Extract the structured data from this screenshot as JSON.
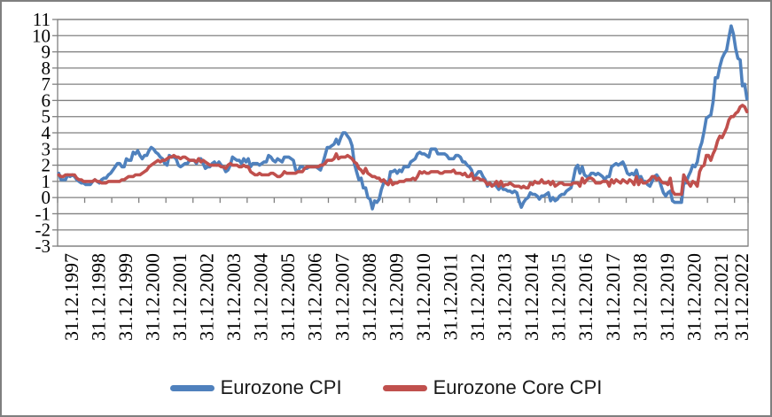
{
  "chart_data": {
    "type": "line",
    "title": "",
    "grid": "horizontal",
    "legend_position": "bottom",
    "ylim": [
      -3,
      11
    ],
    "y_tick_step": 1,
    "y_tick_labels": [
      "11",
      "10",
      "9",
      "8",
      "7",
      "6",
      "5",
      "4",
      "3",
      "2",
      "1",
      "0",
      "-1",
      "-2",
      "-3"
    ],
    "x_tick_labels": [
      "31.12.1997",
      "31.12.1998",
      "31.12.1999",
      "31.12.2000",
      "31.12.2001",
      "31.12.2002",
      "31.12.2003",
      "31.12.2004",
      "31.12.2005",
      "31.12.2006",
      "31.12.2007",
      "31.12.2008",
      "31.12.2009",
      "31.12.2010",
      "31.12.2011",
      "31.12.2012",
      "31.12.2013",
      "31.12.2014",
      "31.12.2015",
      "31.12.2016",
      "31.12.2017",
      "31.12.2018",
      "31.12.2019",
      "31.12.2020",
      "31.12.2021",
      "31.12.2022"
    ],
    "x_label_interval_months": 12,
    "frequency": "monthly",
    "x_start": "1997-12",
    "x_end": "2023-05",
    "series": [
      {
        "name": "Eurozone CPI",
        "color": "#4F81BD",
        "values": [
          1.5,
          1.1,
          1.1,
          1.1,
          1.4,
          1.3,
          1.4,
          1.3,
          1.1,
          1.0,
          0.9,
          0.9,
          0.8,
          0.8,
          0.8,
          1.0,
          1.1,
          1.0,
          0.9,
          1.1,
          1.2,
          1.2,
          1.4,
          1.5,
          1.7,
          1.9,
          2.1,
          2.1,
          1.9,
          1.9,
          2.4,
          2.3,
          2.3,
          2.8,
          2.7,
          2.9,
          2.6,
          2.4,
          2.6,
          2.6,
          2.9,
          3.1,
          3.0,
          2.8,
          2.7,
          2.5,
          2.4,
          2.1,
          2.0,
          2.6,
          2.5,
          2.5,
          2.4,
          2.0,
          1.9,
          2.0,
          2.1,
          2.1,
          2.3,
          2.3,
          2.3,
          2.1,
          2.4,
          2.4,
          2.1,
          1.8,
          1.9,
          1.9,
          2.1,
          2.2,
          2.0,
          2.2,
          2.0,
          1.9,
          1.6,
          1.7,
          2.0,
          2.5,
          2.4,
          2.3,
          2.3,
          2.1,
          2.4,
          2.2,
          2.4,
          1.9,
          2.1,
          2.1,
          2.1,
          2.0,
          2.1,
          2.2,
          2.2,
          2.6,
          2.5,
          2.3,
          2.2,
          2.4,
          2.3,
          2.2,
          2.5,
          2.5,
          2.5,
          2.4,
          2.3,
          1.7,
          1.6,
          1.9,
          1.9,
          1.8,
          1.8,
          1.9,
          1.9,
          1.9,
          1.9,
          1.8,
          1.7,
          2.1,
          2.6,
          3.1,
          3.1,
          3.2,
          3.3,
          3.6,
          3.3,
          3.7,
          4.0,
          4.0,
          3.8,
          3.6,
          3.2,
          2.1,
          1.6,
          1.1,
          1.2,
          0.6,
          0.6,
          0.0,
          -0.1,
          -0.7,
          -0.2,
          -0.3,
          -0.1,
          0.5,
          0.9,
          1.0,
          0.8,
          1.6,
          1.6,
          1.7,
          1.5,
          1.7,
          1.6,
          1.9,
          1.9,
          1.9,
          2.2,
          2.3,
          2.4,
          2.7,
          2.8,
          2.7,
          2.7,
          2.6,
          2.5,
          3.0,
          3.0,
          3.0,
          2.7,
          2.7,
          2.7,
          2.7,
          2.6,
          2.4,
          2.4,
          2.4,
          2.6,
          2.6,
          2.5,
          2.2,
          2.2,
          2.0,
          1.9,
          1.7,
          1.2,
          1.4,
          1.6,
          1.6,
          1.3,
          1.1,
          0.7,
          0.9,
          0.8,
          0.8,
          0.7,
          0.5,
          0.7,
          0.5,
          0.5,
          0.4,
          0.4,
          0.3,
          0.4,
          0.3,
          -0.2,
          -0.6,
          -0.3,
          -0.1,
          0.0,
          0.3,
          0.2,
          0.2,
          0.1,
          -0.1,
          0.1,
          0.1,
          0.2,
          0.3,
          -0.2,
          0.0,
          -0.2,
          -0.1,
          0.1,
          0.2,
          0.2,
          0.4,
          0.5,
          0.6,
          1.1,
          1.8,
          2.0,
          1.5,
          1.9,
          1.4,
          1.3,
          1.3,
          1.5,
          1.5,
          1.4,
          1.5,
          1.4,
          1.3,
          1.1,
          1.3,
          1.3,
          1.9,
          2.0,
          2.1,
          2.0,
          2.1,
          2.2,
          1.9,
          1.5,
          1.4,
          1.5,
          1.4,
          1.7,
          1.2,
          1.3,
          1.0,
          1.0,
          0.8,
          0.7,
          1.0,
          1.3,
          1.4,
          1.2,
          0.7,
          0.3,
          0.1,
          0.3,
          0.4,
          -0.2,
          -0.3,
          -0.3,
          -0.3,
          -0.3,
          0.9,
          0.9,
          1.3,
          1.6,
          2.0,
          1.9,
          2.2,
          3.0,
          3.4,
          4.1,
          4.9,
          5.0,
          5.1,
          5.9,
          7.4,
          7.4,
          8.1,
          8.6,
          8.9,
          9.1,
          9.9,
          10.6,
          10.1,
          9.2,
          8.6,
          8.5,
          6.9,
          7.0,
          6.1
        ]
      },
      {
        "name": "Eurozone Core CPI",
        "color": "#C0504D",
        "values": [
          1.4,
          1.3,
          1.3,
          1.4,
          1.4,
          1.4,
          1.4,
          1.4,
          1.2,
          1.1,
          1.1,
          1.0,
          1.0,
          1.0,
          1.0,
          1.0,
          1.1,
          1.0,
          1.0,
          0.9,
          0.9,
          0.9,
          1.0,
          1.0,
          1.0,
          1.0,
          1.0,
          1.0,
          1.1,
          1.1,
          1.2,
          1.3,
          1.3,
          1.3,
          1.4,
          1.4,
          1.4,
          1.5,
          1.6,
          1.7,
          1.9,
          2.0,
          2.1,
          2.2,
          2.3,
          2.2,
          2.3,
          2.3,
          2.4,
          2.5,
          2.5,
          2.6,
          2.5,
          2.5,
          2.4,
          2.5,
          2.5,
          2.4,
          2.3,
          2.3,
          2.3,
          2.2,
          2.4,
          2.2,
          2.3,
          2.2,
          2.1,
          2.0,
          2.0,
          2.0,
          2.0,
          2.0,
          1.9,
          1.9,
          1.8,
          2.0,
          2.1,
          2.0,
          2.0,
          2.0,
          1.9,
          1.9,
          2.0,
          1.9,
          1.9,
          1.6,
          1.5,
          1.4,
          1.4,
          1.5,
          1.4,
          1.4,
          1.4,
          1.4,
          1.5,
          1.5,
          1.4,
          1.3,
          1.3,
          1.4,
          1.6,
          1.5,
          1.5,
          1.5,
          1.5,
          1.5,
          1.6,
          1.6,
          1.6,
          1.8,
          1.9,
          1.9,
          1.9,
          1.9,
          1.9,
          1.9,
          2.0,
          2.0,
          2.1,
          2.3,
          2.3,
          2.3,
          2.4,
          2.7,
          2.4,
          2.5,
          2.5,
          2.5,
          2.6,
          2.5,
          2.4,
          2.2,
          2.1,
          1.8,
          1.7,
          1.5,
          1.8,
          1.5,
          1.4,
          1.3,
          1.3,
          1.2,
          1.2,
          1.0,
          1.1,
          0.9,
          0.8,
          1.1,
          0.8,
          0.9,
          0.9,
          1.0,
          1.0,
          1.0,
          1.1,
          1.1,
          1.1,
          1.2,
          1.1,
          1.3,
          1.6,
          1.5,
          1.6,
          1.5,
          1.5,
          1.6,
          1.6,
          1.6,
          1.6,
          1.5,
          1.5,
          1.6,
          1.6,
          1.6,
          1.6,
          1.7,
          1.5,
          1.5,
          1.5,
          1.4,
          1.5,
          1.3,
          1.3,
          1.5,
          1.1,
          1.2,
          1.2,
          1.1,
          1.1,
          1.0,
          0.8,
          0.9,
          0.7,
          0.8,
          1.0,
          0.7,
          1.0,
          0.7,
          0.8,
          0.8,
          0.9,
          0.8,
          0.7,
          0.7,
          0.7,
          0.6,
          0.7,
          0.6,
          0.6,
          0.9,
          0.8,
          1.0,
          0.9,
          0.9,
          1.1,
          0.9,
          0.9,
          1.0,
          0.8,
          1.0,
          0.7,
          0.8,
          0.9,
          0.9,
          0.8,
          0.8,
          0.8,
          0.8,
          0.9,
          0.9,
          0.9,
          0.7,
          1.2,
          0.9,
          1.1,
          1.2,
          1.2,
          1.1,
          0.9,
          0.9,
          0.9,
          1.0,
          1.0,
          1.0,
          0.7,
          1.1,
          0.9,
          1.1,
          1.0,
          0.9,
          1.1,
          1.0,
          0.9,
          1.1,
          1.0,
          0.8,
          1.3,
          0.8,
          1.1,
          0.9,
          0.9,
          1.0,
          1.1,
          1.3,
          1.3,
          1.1,
          1.2,
          1.0,
          0.9,
          0.9,
          0.8,
          1.2,
          0.4,
          0.2,
          0.2,
          0.2,
          0.2,
          1.4,
          1.1,
          0.9,
          0.7,
          1.0,
          0.9,
          0.7,
          1.6,
          1.9,
          2.0,
          2.6,
          2.6,
          2.3,
          2.7,
          3.0,
          3.5,
          3.8,
          3.7,
          4.0,
          4.3,
          4.8,
          5.0,
          5.0,
          5.2,
          5.3,
          5.6,
          5.7,
          5.6,
          5.3
        ]
      }
    ]
  },
  "legend": {
    "items": [
      {
        "label": "Eurozone CPI",
        "color": "#4F81BD"
      },
      {
        "label": "Eurozone Core CPI",
        "color": "#C0504D"
      }
    ]
  },
  "colors": {
    "background": "#FFFFFF",
    "grid": "#808080",
    "axis": "#808080",
    "frame_border": "#7F7F7F",
    "text": "#000000",
    "series_blue": "#4F81BD",
    "series_red": "#C0504D"
  }
}
